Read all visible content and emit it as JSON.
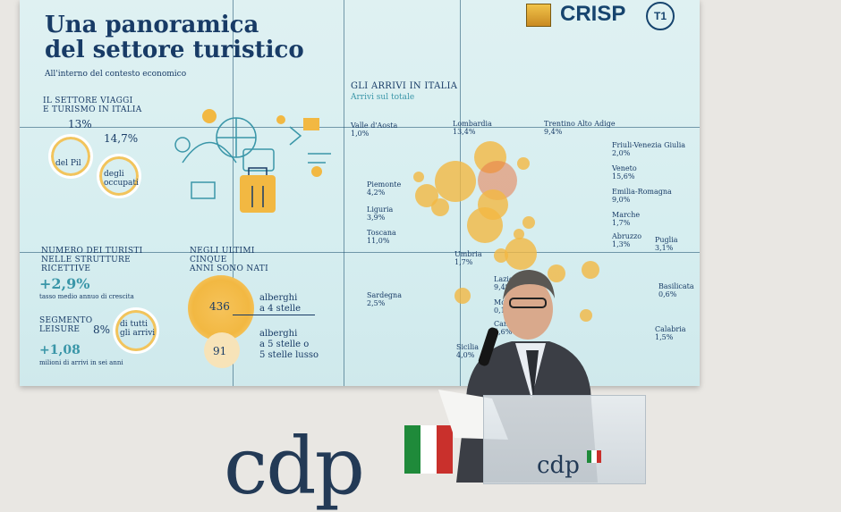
{
  "slide": {
    "title_line1": "Una panoramica",
    "title_line2": "del settore turistico",
    "subtitle": "All'interno del contesto economico",
    "logos": {
      "crisp": "CRISP",
      "t1": "T1"
    },
    "settore": {
      "heading_line1": "IL SETTORE VIAGGI",
      "heading_line2": "E TURISMO IN ITALIA",
      "pil_value": "13%",
      "pil_label": "del Pil",
      "occupati_value": "14,7%",
      "occupati_label_line1": "degli",
      "occupati_label_line2": "occupati"
    },
    "turisti": {
      "heading_line1": "NUMERO DEI TURISTI",
      "heading_line2": "NELLE STRUTTURE",
      "heading_line3": "RICETTIVE",
      "growth_value": "+2,9%",
      "growth_label": "tasso medio annuo di crescita",
      "leisure_line1": "SEGMENTO",
      "leisure_line2": "LEISURE",
      "leisure_value": "8%",
      "leisure_label_line1": "di tutti",
      "leisure_label_line2": "gli arrivi",
      "arrivi_value": "+1,08",
      "arrivi_label": "milioni di arrivi in sei anni"
    },
    "nati": {
      "heading_line1": "NEGLI ULTIMI",
      "heading_line2": "CINQUE",
      "heading_line3": "ANNI SONO NATI",
      "four_star_value": "436",
      "four_star_label_line1": "alberghi",
      "four_star_label_line2": "a 4 stelle",
      "five_star_value": "91",
      "five_star_label_line1": "alberghi",
      "five_star_label_line2": "a 5 stelle o",
      "five_star_label_line3": "5 stelle lusso"
    },
    "arrivi": {
      "heading": "GLI ARRIVI IN ITALIA",
      "subheading": "Arrivi sul totale",
      "regions": [
        {
          "name": "Valle d'Aosta",
          "value": "1,0%"
        },
        {
          "name": "Lombardia",
          "value": "13,4%"
        },
        {
          "name": "Trentino Alto Adige",
          "value": "9,4%"
        },
        {
          "name": "Friuli-Venezia Giulia",
          "value": "2,0%"
        },
        {
          "name": "Veneto",
          "value": "15,6%"
        },
        {
          "name": "Emilia-Romagna",
          "value": "9,0%"
        },
        {
          "name": "Piemonte",
          "value": "4,2%"
        },
        {
          "name": "Liguria",
          "value": "3,9%"
        },
        {
          "name": "Toscana",
          "value": "11,0%"
        },
        {
          "name": "Marche",
          "value": "1,7%"
        },
        {
          "name": "Abruzzo",
          "value": "1,3%"
        },
        {
          "name": "Puglia",
          "value": "3,1%"
        },
        {
          "name": "Umbria",
          "value": "1,7%"
        },
        {
          "name": "Lazio",
          "value": "9,4%"
        },
        {
          "name": "Basilicata",
          "value": "0,6%"
        },
        {
          "name": "Sardegna",
          "value": "2,5%"
        },
        {
          "name": "Molise",
          "value": "0,1%"
        },
        {
          "name": "Campania",
          "value": "4,6%"
        },
        {
          "name": "Calabria",
          "value": "1,5%"
        },
        {
          "name": "Sicilia",
          "value": "4,0%"
        }
      ]
    }
  },
  "wall_logo": "cdp",
  "podium_logo": "cdp",
  "colors": {
    "navy": "#183b66",
    "teal": "#3a96a8",
    "bubble": "#f2b842",
    "flag_green": "#1f8a3a",
    "flag_red": "#c9302c"
  }
}
